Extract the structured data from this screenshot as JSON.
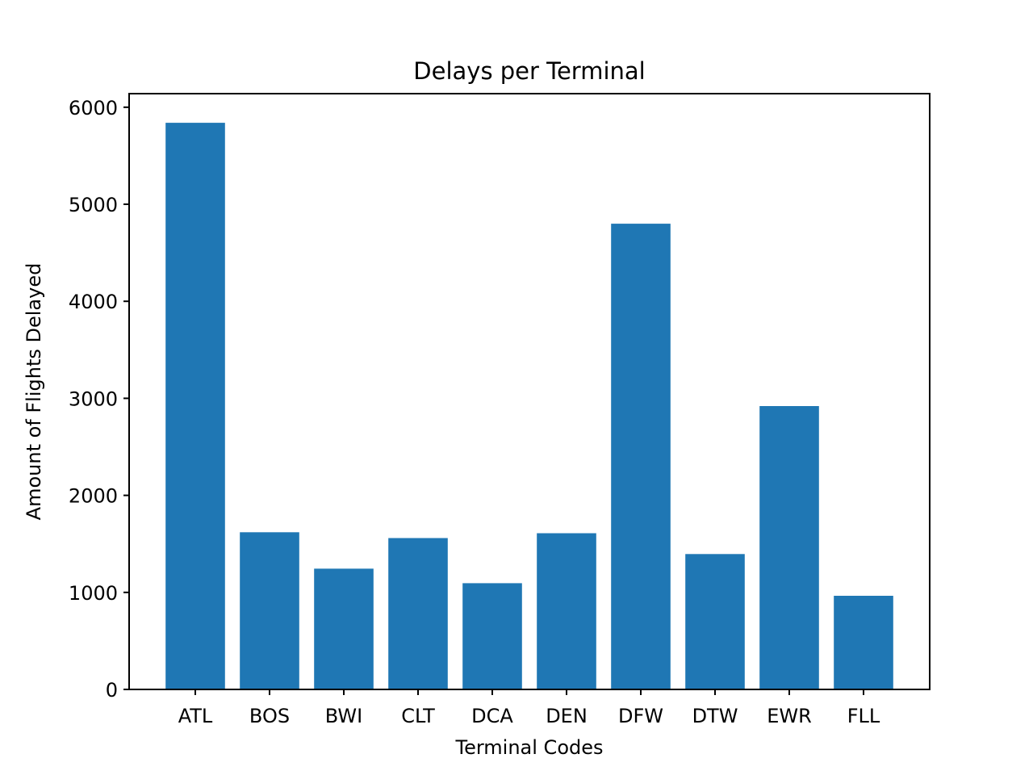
{
  "chart_data": {
    "type": "bar",
    "title": "Delays per Terminal",
    "xlabel": "Terminal Codes",
    "ylabel": "Amount of Flights Delayed",
    "categories": [
      "ATL",
      "BOS",
      "BWI",
      "CLT",
      "DCA",
      "DEN",
      "DFW",
      "DTW",
      "EWR",
      "FLL"
    ],
    "values": [
      5840,
      1620,
      1245,
      1560,
      1095,
      1610,
      4800,
      1395,
      2920,
      965
    ],
    "ylim": [
      0,
      6140
    ],
    "yticks": [
      0,
      1000,
      2000,
      3000,
      4000,
      5000,
      6000
    ],
    "grid": false,
    "legend": "none",
    "bar_color": "#1f77b4"
  }
}
